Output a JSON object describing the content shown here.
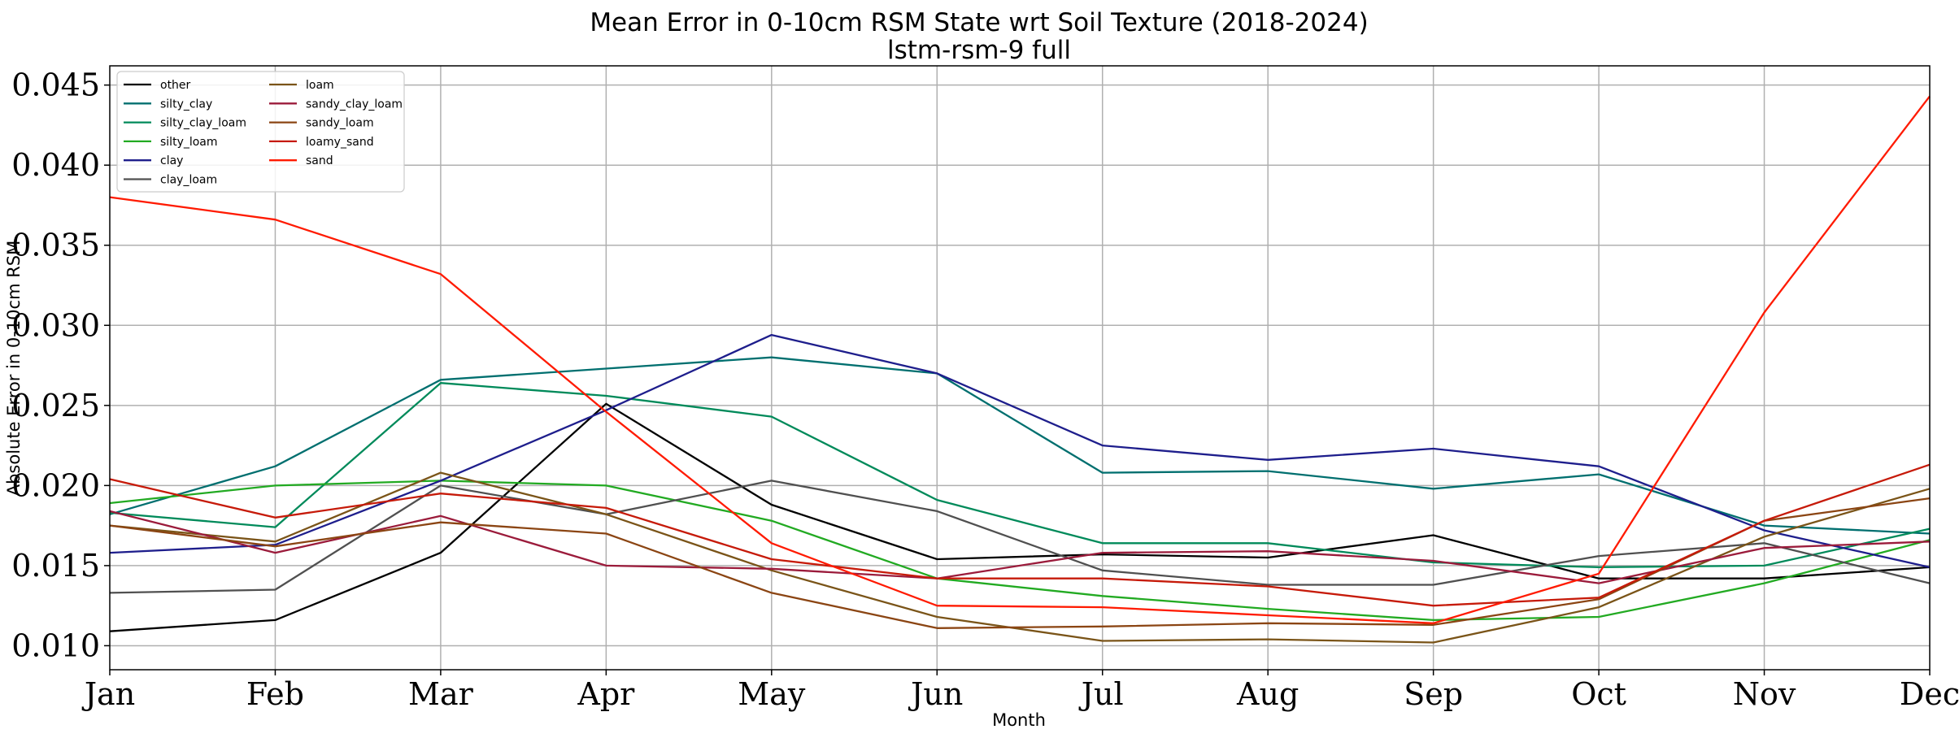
{
  "chart_data": {
    "type": "line",
    "title": "Mean Error in 0-10cm RSM State wrt Soil Texture (2018-2024)",
    "subtitle": "lstm-rsm-9 full",
    "xlabel": "Month",
    "ylabel": "Absolute Error in 0-10cm RSM",
    "categories": [
      "Jan",
      "Feb",
      "Mar",
      "Apr",
      "May",
      "Jun",
      "Jul",
      "Aug",
      "Sep",
      "Oct",
      "Nov",
      "Dec"
    ],
    "ylim": [
      0.0085,
      0.0462
    ],
    "yticks": [
      "0.010",
      "0.015",
      "0.020",
      "0.025",
      "0.030",
      "0.035",
      "0.040",
      "0.045"
    ],
    "grid": true,
    "legend_position": "top-left",
    "series": [
      {
        "name": "other",
        "color": "#000000",
        "values": [
          0.0109,
          0.0116,
          0.0158,
          0.0251,
          0.0188,
          0.0154,
          0.0157,
          0.0155,
          0.0169,
          0.0142,
          0.0142,
          0.0149
        ]
      },
      {
        "name": "silty_clay",
        "color": "#006f6f",
        "values": [
          0.0182,
          0.0212,
          0.0266,
          0.0273,
          0.028,
          0.027,
          0.0208,
          0.0209,
          0.0198,
          0.0207,
          0.0175,
          0.017
        ]
      },
      {
        "name": "silty_clay_loam",
        "color": "#008a5a",
        "values": [
          0.0183,
          0.0174,
          0.0264,
          0.0256,
          0.0243,
          0.0191,
          0.0164,
          0.0164,
          0.0152,
          0.0149,
          0.015,
          0.0173
        ]
      },
      {
        "name": "silty_loam",
        "color": "#22aa22",
        "values": [
          0.0189,
          0.02,
          0.0203,
          0.02,
          0.0178,
          0.0142,
          0.0131,
          0.0123,
          0.0116,
          0.0118,
          0.0139,
          0.0166
        ]
      },
      {
        "name": "clay",
        "color": "#1e1e8c",
        "values": [
          0.0158,
          0.0163,
          0.0203,
          0.0247,
          0.0294,
          0.027,
          0.0225,
          0.0216,
          0.0223,
          0.0212,
          0.0172,
          0.0149
        ]
      },
      {
        "name": "clay_loam",
        "color": "#505050",
        "values": [
          0.0133,
          0.0135,
          0.02,
          0.0182,
          0.0203,
          0.0184,
          0.0147,
          0.0138,
          0.0138,
          0.0156,
          0.0164,
          0.0139
        ]
      },
      {
        "name": "loam",
        "color": "#7a5418",
        "values": [
          0.0175,
          0.0165,
          0.0208,
          0.0182,
          0.0147,
          0.0118,
          0.0103,
          0.0104,
          0.0102,
          0.0124,
          0.0168,
          0.0198
        ]
      },
      {
        "name": "sandy_clay_loam",
        "color": "#9b1b3b",
        "values": [
          0.0184,
          0.0158,
          0.0181,
          0.015,
          0.0148,
          0.0142,
          0.0158,
          0.0159,
          0.0153,
          0.0139,
          0.0161,
          0.0165
        ]
      },
      {
        "name": "sandy_loam",
        "color": "#8b4513",
        "values": [
          0.0175,
          0.0162,
          0.0177,
          0.017,
          0.0133,
          0.0111,
          0.0112,
          0.0114,
          0.0113,
          0.0129,
          0.0178,
          0.0192
        ]
      },
      {
        "name": "loamy_sand",
        "color": "#c61a09",
        "values": [
          0.0204,
          0.018,
          0.0195,
          0.0186,
          0.0154,
          0.0142,
          0.0142,
          0.0137,
          0.0125,
          0.013,
          0.0178,
          0.0213
        ]
      },
      {
        "name": "sand",
        "color": "#ff1a00",
        "values": [
          0.038,
          0.0366,
          0.0332,
          0.0246,
          0.0164,
          0.0125,
          0.0124,
          0.0119,
          0.0114,
          0.0145,
          0.0308,
          0.0443
        ]
      }
    ]
  }
}
